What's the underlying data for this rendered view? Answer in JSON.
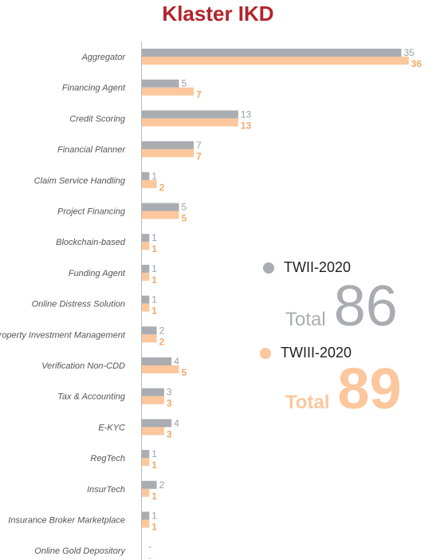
{
  "page_title": "Klaster IKD",
  "colors": {
    "title": "#b3232a",
    "series_2020_ii": "#a9adb1",
    "series_2020_iii": "#fcc79c",
    "label_2020_ii": "#9aa0a6",
    "label_2020_iii": "#f5a96a",
    "axis": "#bbbbbb"
  },
  "legend": [
    {
      "label": "TWII-2020",
      "total_label": "Total",
      "total": "86"
    },
    {
      "label": "TWIII-2020",
      "total_label": "Total",
      "total": "89"
    }
  ],
  "chart_data": {
    "type": "bar",
    "orientation": "horizontal",
    "title": "Klaster IKD",
    "categories": [
      "Aggregator",
      "Financing Agent",
      "Credit Scoring",
      "Financial Planner",
      "Claim Service Handling",
      "Project Financing",
      "Blockchain-based",
      "Funding Agent",
      "Online Distress Solution",
      "Property Investment Management",
      "Verification Non-CDD",
      "Tax & Accounting",
      "E-KYC",
      "RegTech",
      "InsurTech",
      "Insurance Broker Marketplace",
      "Online Gold Depository"
    ],
    "series": [
      {
        "name": "TWII-2020",
        "values": [
          35,
          5,
          13,
          7,
          1,
          5,
          1,
          1,
          1,
          2,
          4,
          3,
          4,
          1,
          2,
          1,
          null
        ]
      },
      {
        "name": "TWIII-2020",
        "values": [
          36,
          7,
          13,
          7,
          2,
          5,
          1,
          1,
          1,
          2,
          5,
          3,
          3,
          1,
          1,
          1,
          null
        ]
      }
    ],
    "missing_label": "-",
    "xlim": [
      0,
      36
    ],
    "legend_position": "right"
  }
}
